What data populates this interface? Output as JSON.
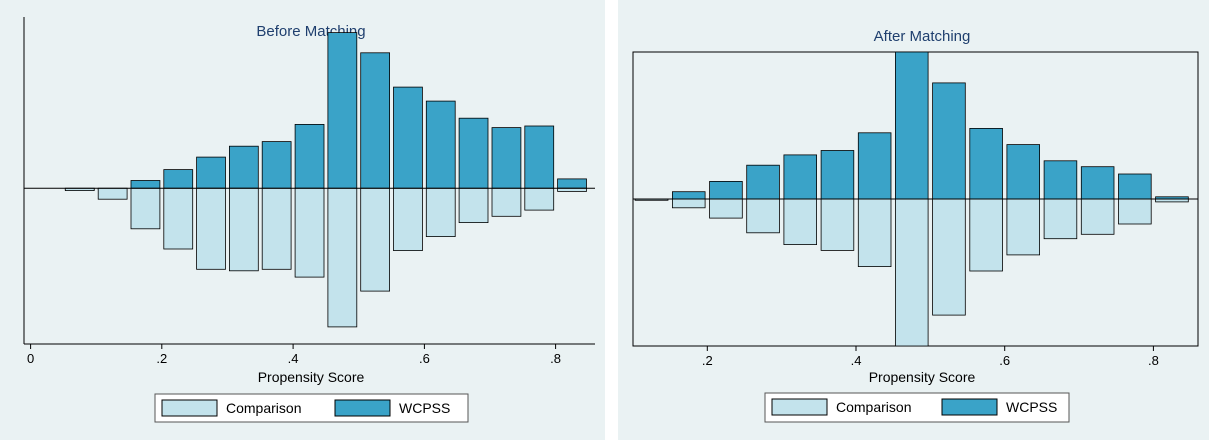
{
  "colors": {
    "panel_background": "#eaf2f3",
    "comparison_fill": "#c3e3ec",
    "wcpss_fill": "#3aa3c8",
    "bar_outline": "#000000",
    "title_color": "#1f3f6e"
  },
  "chart_data": [
    {
      "type": "bar",
      "orientation": "mirrored",
      "title": "Before Matching",
      "xlabel": "Propensity Score",
      "ylabel": "",
      "xlim": [
        -0.01,
        0.86
      ],
      "ylim": [
        -1.0,
        1.1
      ],
      "xticks": [
        0,
        0.2,
        0.4,
        0.6,
        0.8
      ],
      "xtick_labels": [
        "0",
        ".2",
        ".4",
        ".6",
        ".8"
      ],
      "grid": false,
      "legend_position": "bottom",
      "bin_width": 0.05,
      "x": [
        0.075,
        0.125,
        0.175,
        0.225,
        0.275,
        0.325,
        0.375,
        0.425,
        0.475,
        0.525,
        0.575,
        0.625,
        0.675,
        0.725,
        0.775,
        0.825
      ],
      "series": [
        {
          "name": "WCPSS",
          "values": [
            0.0,
            0.0,
            0.05,
            0.12,
            0.2,
            0.27,
            0.3,
            0.41,
            1.0,
            0.87,
            0.65,
            0.56,
            0.45,
            0.39,
            0.4,
            0.06
          ]
        },
        {
          "name": "Comparison",
          "values": [
            -0.015,
            -0.07,
            -0.26,
            -0.39,
            -0.52,
            -0.53,
            -0.52,
            -0.57,
            -0.89,
            -0.66,
            -0.4,
            -0.31,
            -0.22,
            -0.18,
            -0.14,
            -0.02
          ]
        }
      ]
    },
    {
      "type": "bar",
      "orientation": "mirrored",
      "title": "After Matching",
      "xlabel": "Propensity Score",
      "ylabel": "",
      "xlim": [
        0.1,
        0.86
      ],
      "ylim": [
        -1.0,
        1.0
      ],
      "xticks": [
        0.2,
        0.4,
        0.6,
        0.8
      ],
      "xtick_labels": [
        ".2",
        ".4",
        ".6",
        ".8"
      ],
      "grid": false,
      "legend_position": "bottom",
      "bin_width": 0.05,
      "x": [
        0.125,
        0.175,
        0.225,
        0.275,
        0.325,
        0.375,
        0.425,
        0.475,
        0.525,
        0.575,
        0.625,
        0.675,
        0.725,
        0.775,
        0.825
      ],
      "series": [
        {
          "name": "WCPSS",
          "values": [
            0.0,
            0.05,
            0.12,
            0.23,
            0.3,
            0.33,
            0.45,
            1.0,
            0.79,
            0.48,
            0.37,
            0.26,
            0.22,
            0.17,
            0.015
          ]
        },
        {
          "name": "Comparison",
          "values": [
            0.0,
            -0.06,
            -0.13,
            -0.23,
            -0.31,
            -0.35,
            -0.46,
            -1.0,
            -0.79,
            -0.49,
            -0.38,
            -0.27,
            -0.24,
            -0.17,
            -0.02
          ]
        }
      ]
    }
  ],
  "legend": {
    "items": [
      "Comparison",
      "WCPSS"
    ]
  }
}
